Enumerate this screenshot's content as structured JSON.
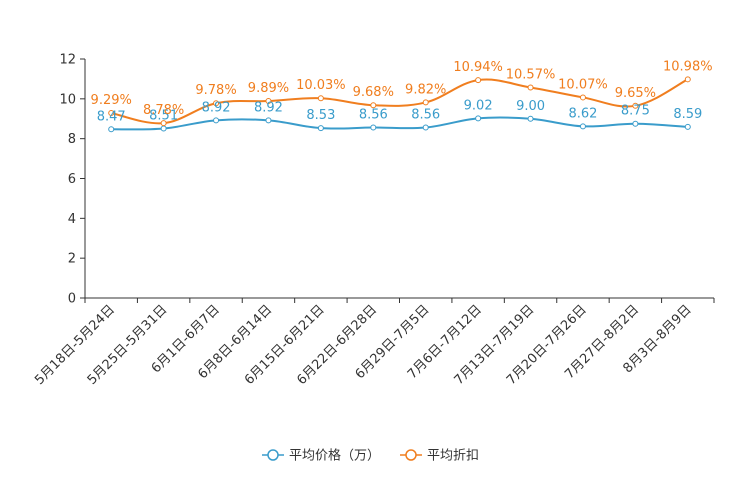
{
  "chart_data": {
    "type": "line",
    "title": "",
    "xlabel": "",
    "ylabel": "",
    "ylim": [
      0,
      12
    ],
    "yticks": [
      0,
      2,
      4,
      6,
      8,
      10,
      12
    ],
    "grid": false,
    "legend_position": "bottom-center",
    "categories": [
      "5月18日-5月24日",
      "5月25日-5月31日",
      "6月1日-6月7日",
      "6月8日-6月14日",
      "6月15日-6月21日",
      "6月22日-6月28日",
      "6月29日-7月5日",
      "7月6日-7月12日",
      "7月13日-7月19日",
      "7月20日-7月26日",
      "7月27日-8月2日",
      "8月3日-8月9日"
    ],
    "series": [
      {
        "name": "平均价格（万）",
        "color": "#3a9ccb",
        "values": [
          8.47,
          8.51,
          8.92,
          8.92,
          8.53,
          8.56,
          8.56,
          9.02,
          9.0,
          8.62,
          8.75,
          8.59
        ],
        "labels": [
          "8.47",
          "8.51",
          "8.92",
          "8.92",
          "8.53",
          "8.56",
          "8.56",
          "9.02",
          "9.00",
          "8.62",
          "8.75",
          "8.59"
        ]
      },
      {
        "name": "平均折扣",
        "color": "#f07e1f",
        "values": [
          9.29,
          8.78,
          9.78,
          9.89,
          10.03,
          9.68,
          9.82,
          10.94,
          10.57,
          10.07,
          9.65,
          10.98
        ],
        "labels": [
          "9.29%",
          "8.78%",
          "9.78%",
          "9.89%",
          "10.03%",
          "9.68%",
          "9.82%",
          "10.94%",
          "10.57%",
          "10.07%",
          "9.65%",
          "10.98%"
        ]
      }
    ]
  }
}
